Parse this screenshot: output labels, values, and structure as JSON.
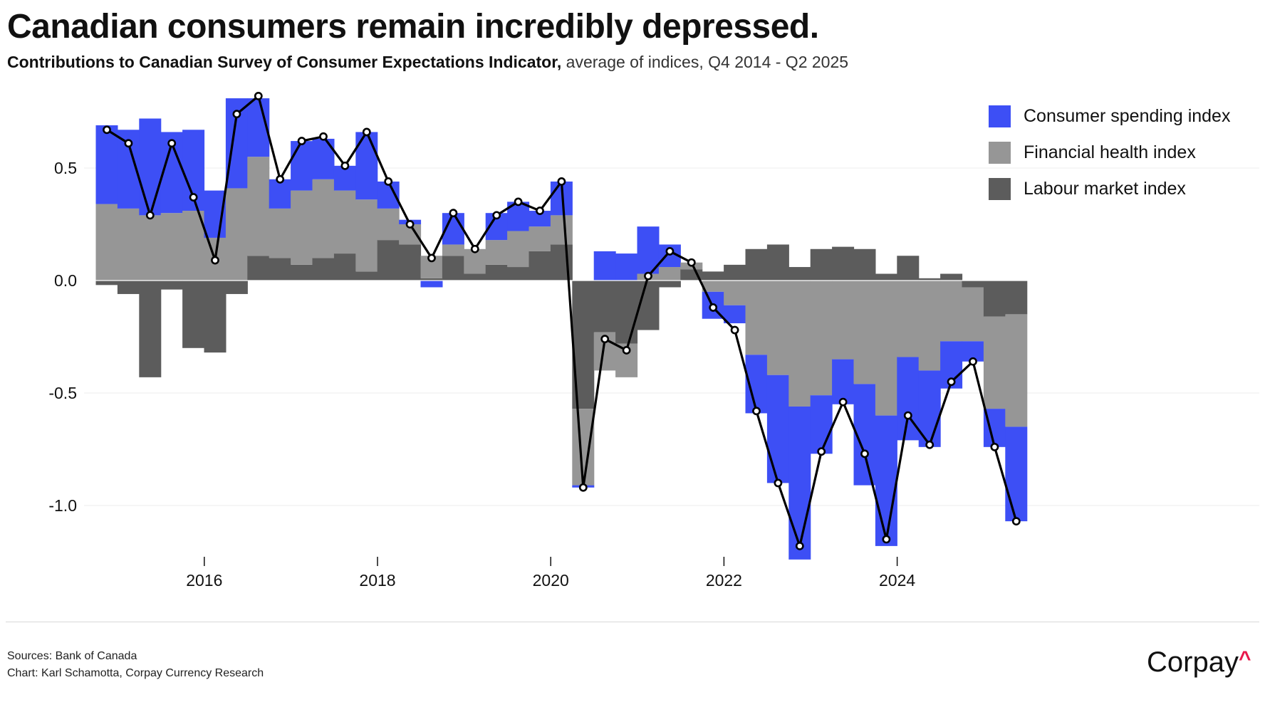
{
  "header": {
    "title": "Canadian consumers remain incredibly depressed.",
    "subtitle_strong": "Contributions to Canadian Survey of Consumer Expectations Indicator,",
    "subtitle_light": " average of indices, Q4 2014 - Q2 2025"
  },
  "footer": {
    "sources": "Sources: Bank of Canada",
    "credit": "Chart: Karl Schamotta, Corpay Currency Research",
    "logo_text": "Corpay",
    "logo_mark": "^"
  },
  "colors": {
    "consumer_spending": "#3d4ff5",
    "financial_health": "#969696",
    "labour_market": "#5c5c5c",
    "line": "#000000",
    "marker_fill": "#ffffff",
    "logo_accent": "#e8194b"
  },
  "legend": [
    {
      "name": "Consumer spending index",
      "color": "#3d4ff5"
    },
    {
      "name": "Financial health index",
      "color": "#969696"
    },
    {
      "name": "Labour market index",
      "color": "#5c5c5c"
    }
  ],
  "chart_data": {
    "type": "bar",
    "stacked": true,
    "title": "Canadian consumers remain incredibly depressed.",
    "x_start": "Q4 2014",
    "x_end": "Q2 2025",
    "categories": [
      "2014Q4",
      "2015Q1",
      "2015Q2",
      "2015Q3",
      "2015Q4",
      "2016Q1",
      "2016Q2",
      "2016Q3",
      "2016Q4",
      "2017Q1",
      "2017Q2",
      "2017Q3",
      "2017Q4",
      "2018Q1",
      "2018Q2",
      "2018Q3",
      "2018Q4",
      "2019Q1",
      "2019Q2",
      "2019Q3",
      "2019Q4",
      "2020Q1",
      "2020Q2",
      "2020Q3",
      "2020Q4",
      "2021Q1",
      "2021Q2",
      "2021Q3",
      "2021Q4",
      "2022Q1",
      "2022Q2",
      "2022Q3",
      "2022Q4",
      "2023Q1",
      "2023Q2",
      "2023Q3",
      "2023Q4",
      "2024Q1",
      "2024Q2",
      "2024Q3",
      "2024Q4",
      "2025Q1",
      "2025Q2"
    ],
    "x_tick_labels": [
      "2016",
      "2018",
      "2020",
      "2022",
      "2024"
    ],
    "y_ticks": [
      0.5,
      0.0,
      -0.5,
      -1.0
    ],
    "y_tick_labels": [
      "0.5",
      "0.0",
      "-0.5",
      "-1.0"
    ],
    "ylim": [
      -1.25,
      0.82
    ],
    "grid": "horizontal",
    "legend_position": "top-right",
    "series": [
      {
        "name": "Labour market index",
        "type": "bar",
        "values": [
          -0.02,
          -0.06,
          -0.43,
          -0.04,
          -0.3,
          -0.32,
          -0.06,
          0.11,
          0.1,
          0.07,
          0.1,
          0.12,
          0.04,
          0.18,
          0.16,
          0.01,
          0.11,
          0.03,
          0.07,
          0.06,
          0.13,
          0.16,
          -0.57,
          -0.23,
          -0.28,
          -0.22,
          -0.03,
          0.05,
          0.04,
          0.07,
          0.14,
          0.16,
          0.06,
          0.14,
          0.15,
          0.14,
          0.03,
          0.11,
          0.01,
          0.03,
          -0.03,
          -0.16,
          -0.15
        ]
      },
      {
        "name": "Financial health index",
        "type": "bar",
        "values": [
          0.34,
          0.32,
          0.29,
          0.3,
          0.31,
          0.19,
          0.41,
          0.44,
          0.22,
          0.33,
          0.35,
          0.28,
          0.32,
          0.14,
          0.09,
          0.1,
          0.05,
          0.11,
          0.11,
          0.16,
          0.11,
          0.13,
          -0.34,
          -0.17,
          -0.15,
          0.03,
          0.06,
          0.03,
          -0.05,
          -0.11,
          -0.33,
          -0.42,
          -0.56,
          -0.51,
          -0.35,
          -0.46,
          -0.6,
          -0.34,
          -0.4,
          -0.27,
          -0.24,
          -0.41,
          -0.5
        ]
      },
      {
        "name": "Consumer spending index",
        "type": "bar",
        "values": [
          0.35,
          0.35,
          0.43,
          0.36,
          0.36,
          0.21,
          0.4,
          0.26,
          0.13,
          0.22,
          0.18,
          0.11,
          0.3,
          0.12,
          0.02,
          -0.03,
          0.14,
          0.0,
          0.12,
          0.13,
          0.07,
          0.15,
          -0.01,
          0.13,
          0.12,
          0.21,
          0.1,
          0.0,
          -0.12,
          -0.08,
          -0.26,
          -0.48,
          -0.68,
          -0.26,
          -0.2,
          -0.45,
          -0.58,
          -0.37,
          -0.34,
          -0.21,
          -0.09,
          -0.17,
          -0.42
        ]
      },
      {
        "name": "Consumer Expectations Indicator",
        "type": "line",
        "values": [
          0.67,
          0.61,
          0.29,
          0.61,
          0.37,
          0.09,
          0.74,
          0.82,
          0.45,
          0.62,
          0.64,
          0.51,
          0.66,
          0.44,
          0.25,
          0.1,
          0.3,
          0.14,
          0.29,
          0.35,
          0.31,
          0.44,
          -0.92,
          -0.26,
          -0.31,
          0.02,
          0.13,
          0.08,
          -0.12,
          -0.22,
          -0.58,
          -0.9,
          -1.18,
          -0.76,
          -0.54,
          -0.77,
          -1.15,
          -0.6,
          -0.73,
          -0.45,
          -0.36,
          -0.74,
          -1.07
        ]
      }
    ]
  }
}
